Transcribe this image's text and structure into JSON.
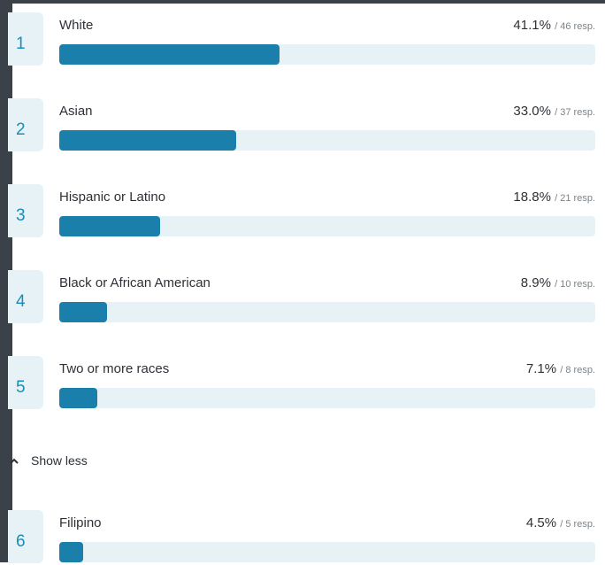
{
  "rows_top": [
    {
      "rank": "1",
      "label": "White",
      "percent": "41.1%",
      "responses": "/ 46 resp.",
      "fraction": 0.411
    },
    {
      "rank": "2",
      "label": "Asian",
      "percent": "33.0%",
      "responses": "/ 37 resp.",
      "fraction": 0.33
    },
    {
      "rank": "3",
      "label": "Hispanic or Latino",
      "percent": "18.8%",
      "responses": "/ 21 resp.",
      "fraction": 0.188
    },
    {
      "rank": "4",
      "label": "Black or African American",
      "percent": "8.9%",
      "responses": "/ 10 resp.",
      "fraction": 0.089
    },
    {
      "rank": "5",
      "label": "Two or more races",
      "percent": "7.1%",
      "responses": "/ 8 resp.",
      "fraction": 0.071
    }
  ],
  "toggle": {
    "label": "Show less",
    "icon": "chevron-up-icon"
  },
  "rows_bottom": [
    {
      "rank": "6",
      "label": "Filipino",
      "percent": "4.5%",
      "responses": "/ 5 resp.",
      "fraction": 0.045
    }
  ],
  "colors": {
    "bar_fill": "#1a80ab",
    "bar_track": "#e7f2f7",
    "rank_text": "#1a8cb8",
    "frame": "#3a4148"
  }
}
